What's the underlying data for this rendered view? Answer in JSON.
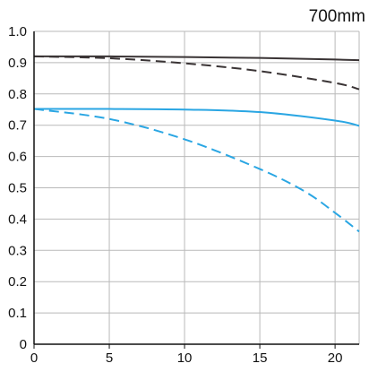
{
  "chart_data": {
    "type": "line",
    "title": "700mm",
    "xlabel": "",
    "ylabel": "",
    "xlim": [
      0,
      21.6
    ],
    "ylim": [
      0,
      1.0
    ],
    "x_ticks": [
      "0",
      "5",
      "10",
      "15",
      "20"
    ],
    "y_ticks": [
      "0",
      "0.1",
      "0.2",
      "0.3",
      "0.4",
      "0.5",
      "0.6",
      "0.7",
      "0.8",
      "0.9",
      "1.0"
    ],
    "grid": true,
    "colors": {
      "dark": "#3a3435",
      "blue": "#2aa6e3",
      "grid": "#b9b9b9",
      "axis": "#111111"
    },
    "series": [
      {
        "color": "dark",
        "style": "solid",
        "x": [
          0,
          5,
          10,
          15,
          20,
          21.6
        ],
        "y": [
          0.92,
          0.92,
          0.918,
          0.915,
          0.91,
          0.908
        ]
      },
      {
        "color": "dark",
        "style": "dashed",
        "x": [
          0,
          5,
          10,
          15,
          20,
          21.6
        ],
        "y": [
          0.92,
          0.914,
          0.898,
          0.873,
          0.835,
          0.815
        ]
      },
      {
        "color": "blue",
        "style": "solid",
        "x": [
          0,
          5,
          10,
          15,
          20,
          21.6
        ],
        "y": [
          0.752,
          0.752,
          0.75,
          0.742,
          0.715,
          0.698
        ]
      },
      {
        "color": "blue",
        "style": "dashed",
        "x": [
          0,
          5,
          10,
          15,
          18,
          20,
          21.6
        ],
        "y": [
          0.752,
          0.72,
          0.655,
          0.56,
          0.488,
          0.42,
          0.36
        ]
      }
    ]
  }
}
